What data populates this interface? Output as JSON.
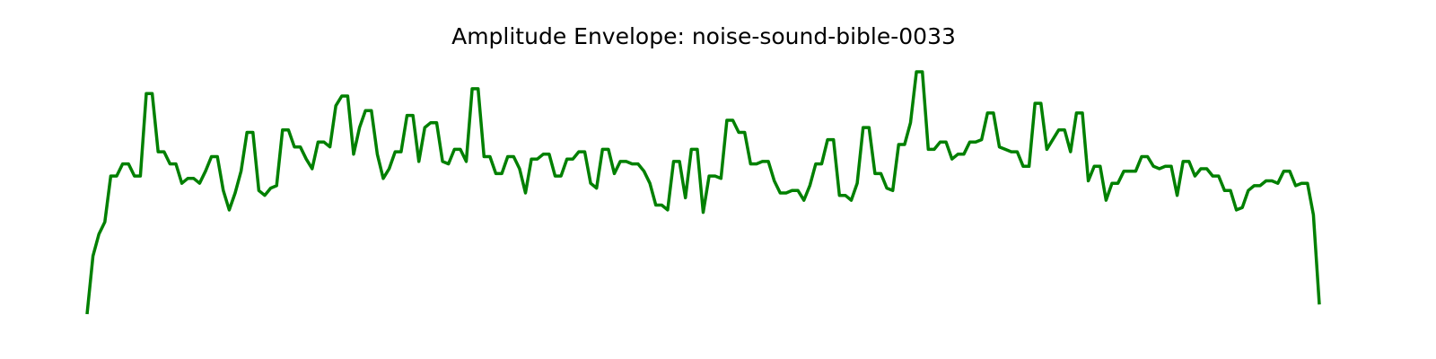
{
  "chart_data": {
    "type": "line",
    "title": "Amplitude Envelope: noise-sound-bible-0033",
    "color": "#008000",
    "ylim": [
      -0.05,
      1.05
    ],
    "values": [
      0.0,
      0.24,
      0.33,
      0.38,
      0.57,
      0.57,
      0.62,
      0.62,
      0.57,
      0.57,
      0.91,
      0.91,
      0.67,
      0.67,
      0.62,
      0.62,
      0.54,
      0.56,
      0.56,
      0.54,
      0.59,
      0.65,
      0.65,
      0.51,
      0.43,
      0.5,
      0.59,
      0.75,
      0.75,
      0.51,
      0.49,
      0.52,
      0.53,
      0.76,
      0.76,
      0.69,
      0.69,
      0.64,
      0.6,
      0.71,
      0.71,
      0.69,
      0.86,
      0.9,
      0.9,
      0.66,
      0.77,
      0.84,
      0.84,
      0.66,
      0.56,
      0.6,
      0.67,
      0.67,
      0.82,
      0.82,
      0.63,
      0.77,
      0.79,
      0.79,
      0.63,
      0.62,
      0.68,
      0.68,
      0.63,
      0.93,
      0.93,
      0.65,
      0.65,
      0.58,
      0.58,
      0.65,
      0.65,
      0.6,
      0.5,
      0.64,
      0.64,
      0.66,
      0.66,
      0.57,
      0.57,
      0.64,
      0.64,
      0.67,
      0.67,
      0.54,
      0.52,
      0.68,
      0.68,
      0.58,
      0.63,
      0.63,
      0.62,
      0.62,
      0.59,
      0.54,
      0.45,
      0.45,
      0.43,
      0.63,
      0.63,
      0.48,
      0.68,
      0.68,
      0.42,
      0.57,
      0.57,
      0.56,
      0.8,
      0.8,
      0.75,
      0.75,
      0.62,
      0.62,
      0.63,
      0.63,
      0.55,
      0.5,
      0.5,
      0.51,
      0.51,
      0.47,
      0.53,
      0.62,
      0.62,
      0.72,
      0.72,
      0.49,
      0.49,
      0.47,
      0.54,
      0.77,
      0.77,
      0.58,
      0.58,
      0.52,
      0.51,
      0.7,
      0.7,
      0.79,
      1.0,
      1.0,
      0.68,
      0.68,
      0.71,
      0.71,
      0.64,
      0.66,
      0.66,
      0.71,
      0.71,
      0.72,
      0.83,
      0.83,
      0.69,
      0.68,
      0.67,
      0.67,
      0.61,
      0.61,
      0.87,
      0.87,
      0.68,
      0.72,
      0.76,
      0.76,
      0.67,
      0.83,
      0.83,
      0.55,
      0.61,
      0.61,
      0.47,
      0.54,
      0.54,
      0.59,
      0.59,
      0.59,
      0.65,
      0.65,
      0.61,
      0.6,
      0.61,
      0.61,
      0.49,
      0.63,
      0.63,
      0.57,
      0.6,
      0.6,
      0.57,
      0.57,
      0.51,
      0.51,
      0.43,
      0.44,
      0.51,
      0.53,
      0.53,
      0.55,
      0.55,
      0.54,
      0.59,
      0.59,
      0.53,
      0.54,
      0.54,
      0.41,
      0.04
    ]
  }
}
